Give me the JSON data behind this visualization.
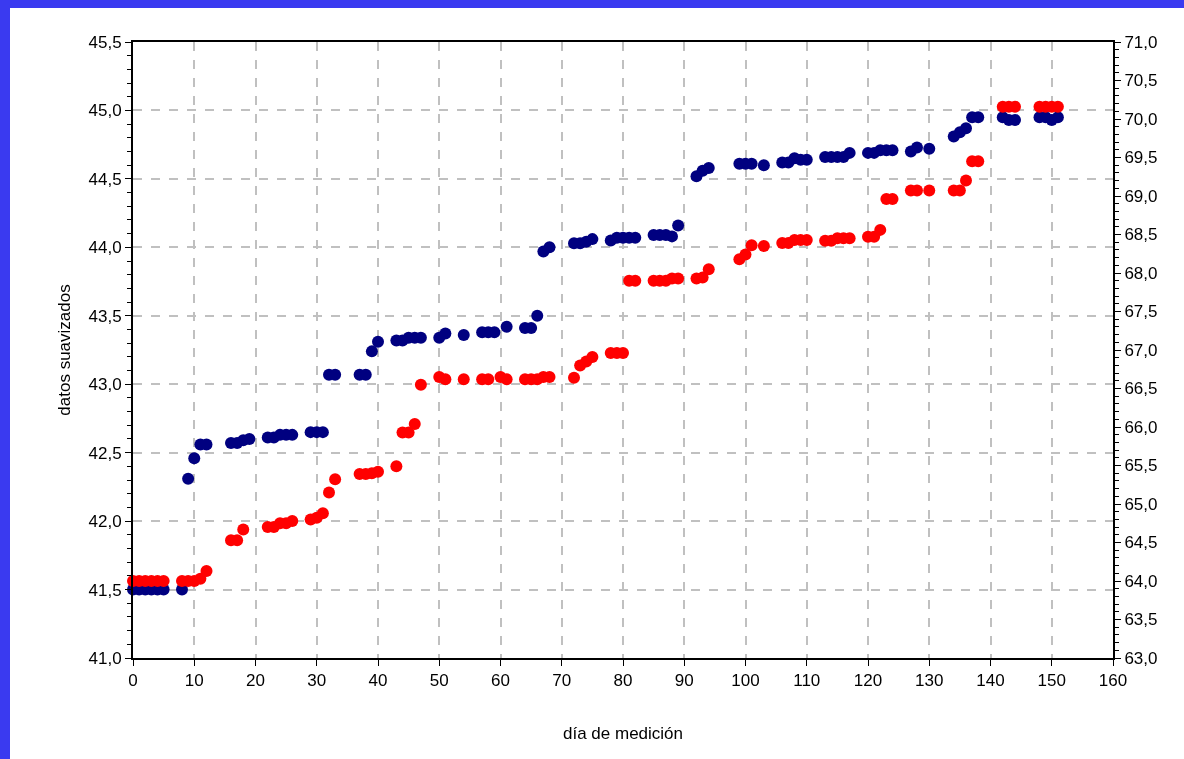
{
  "chart_data": {
    "type": "scatter",
    "xlabel": "día de medición",
    "ylabel": "datos suavizados",
    "marker": "circle",
    "grid": true,
    "xlim": [
      0,
      160
    ],
    "xticks": [
      0,
      10,
      20,
      30,
      40,
      50,
      60,
      70,
      80,
      90,
      100,
      110,
      120,
      130,
      140,
      150,
      160
    ],
    "ylim": [
      41,
      45.5
    ],
    "yticks": [
      {
        "value": 41,
        "label": "41,0"
      },
      {
        "value": 41.5,
        "label": "41,5"
      },
      {
        "value": 42,
        "label": "42,0"
      },
      {
        "value": 42.5,
        "label": "42,5"
      },
      {
        "value": 43,
        "label": "43,0"
      },
      {
        "value": 43.5,
        "label": "43,5"
      },
      {
        "value": 44,
        "label": "44,0"
      },
      {
        "value": 44.5,
        "label": "44,5"
      },
      {
        "value": 45,
        "label": "45,0"
      },
      {
        "value": 45.5,
        "label": "45,5"
      }
    ],
    "y2lim": [
      63,
      71
    ],
    "y2ticks": [
      {
        "value": 63,
        "label": "63,0"
      },
      {
        "value": 63.5,
        "label": "63,5"
      },
      {
        "value": 64,
        "label": "64,0"
      },
      {
        "value": 64.5,
        "label": "64,5"
      },
      {
        "value": 65,
        "label": "65,0"
      },
      {
        "value": 65.5,
        "label": "65,5"
      },
      {
        "value": 66,
        "label": "66,0"
      },
      {
        "value": 66.5,
        "label": "66,5"
      },
      {
        "value": 67,
        "label": "67,0"
      },
      {
        "value": 67.5,
        "label": "67,5"
      },
      {
        "value": 68,
        "label": "68,0"
      },
      {
        "value": 68.5,
        "label": "68,5"
      },
      {
        "value": 69,
        "label": "69,0"
      },
      {
        "value": 69.5,
        "label": "69,5"
      },
      {
        "value": 70,
        "label": "70,0"
      },
      {
        "value": 70.5,
        "label": "70,5"
      },
      {
        "value": 71,
        "label": "71,0"
      }
    ],
    "series": [
      {
        "color": "#000080",
        "x": [
          0,
          1,
          2,
          3,
          4,
          5,
          8,
          9,
          10,
          11,
          12,
          16,
          17,
          18,
          19,
          22,
          23,
          24,
          25,
          26,
          29,
          30,
          31,
          32,
          33,
          37,
          38,
          39,
          40,
          43,
          44,
          45,
          46,
          47,
          50,
          51,
          54,
          57,
          58,
          59,
          61,
          64,
          65,
          66,
          67,
          68,
          72,
          73,
          74,
          75,
          78,
          79,
          80,
          81,
          82,
          85,
          86,
          87,
          88,
          89,
          92,
          93,
          94,
          99,
          100,
          101,
          103,
          106,
          107,
          108,
          109,
          110,
          113,
          114,
          115,
          116,
          117,
          120,
          121,
          122,
          123,
          124,
          127,
          128,
          130,
          134,
          135,
          136,
          137,
          138,
          142,
          143,
          144,
          148,
          149,
          150,
          151
        ],
        "values": [
          41.5,
          41.5,
          41.5,
          41.5,
          41.5,
          41.5,
          41.5,
          42.31,
          42.46,
          42.56,
          42.56,
          42.57,
          42.57,
          42.59,
          42.6,
          42.61,
          42.61,
          42.63,
          42.63,
          42.63,
          42.65,
          42.65,
          42.65,
          43.07,
          43.07,
          43.07,
          43.07,
          43.24,
          43.31,
          43.32,
          43.32,
          43.34,
          43.34,
          43.34,
          43.34,
          43.37,
          43.36,
          43.38,
          43.38,
          43.38,
          43.42,
          43.41,
          43.41,
          43.5,
          43.97,
          44.0,
          44.03,
          44.03,
          44.04,
          44.06,
          44.05,
          44.07,
          44.07,
          44.07,
          44.07,
          44.09,
          44.09,
          44.09,
          44.08,
          44.16,
          44.52,
          44.56,
          44.58,
          44.61,
          44.61,
          44.61,
          44.6,
          44.62,
          44.62,
          44.65,
          44.64,
          44.64,
          44.66,
          44.66,
          44.66,
          44.66,
          44.69,
          44.69,
          44.69,
          44.71,
          44.71,
          44.71,
          44.7,
          44.73,
          44.72,
          44.81,
          44.84,
          44.87,
          44.95,
          44.95,
          44.95,
          44.93,
          44.93,
          44.95,
          44.95,
          44.93,
          44.95
        ]
      },
      {
        "color": "#ff0000",
        "axis": "y2",
        "x": [
          0,
          1,
          2,
          3,
          4,
          5,
          8,
          9,
          10,
          11,
          12,
          16,
          17,
          18,
          22,
          23,
          24,
          25,
          26,
          29,
          30,
          31,
          32,
          33,
          37,
          38,
          39,
          40,
          43,
          44,
          45,
          46,
          47,
          50,
          51,
          54,
          57,
          58,
          60,
          61,
          64,
          65,
          66,
          67,
          68,
          72,
          73,
          74,
          75,
          78,
          79,
          80,
          81,
          82,
          85,
          86,
          87,
          88,
          89,
          92,
          93,
          94,
          99,
          100,
          101,
          103,
          106,
          107,
          108,
          109,
          110,
          113,
          114,
          115,
          116,
          117,
          120,
          121,
          122,
          123,
          124,
          127,
          128,
          130,
          134,
          135,
          136,
          137,
          138,
          142,
          143,
          144,
          148,
          149,
          150,
          151
        ],
        "values": [
          64.0,
          64.0,
          64.0,
          64.0,
          64.0,
          64.0,
          64.0,
          64.0,
          64.0,
          64.03,
          64.13,
          64.53,
          64.53,
          64.67,
          64.7,
          64.7,
          64.75,
          64.75,
          64.78,
          64.8,
          64.82,
          64.88,
          65.15,
          65.32,
          65.39,
          65.39,
          65.4,
          65.42,
          65.49,
          65.93,
          65.93,
          66.04,
          66.55,
          66.65,
          66.62,
          66.62,
          66.62,
          66.62,
          66.65,
          66.62,
          66.62,
          66.62,
          66.62,
          66.65,
          66.65,
          66.64,
          66.8,
          66.85,
          66.91,
          66.96,
          66.96,
          66.96,
          67.9,
          67.9,
          67.9,
          67.9,
          67.9,
          67.93,
          67.93,
          67.93,
          67.94,
          68.05,
          68.18,
          68.24,
          68.36,
          68.35,
          68.39,
          68.39,
          68.43,
          68.43,
          68.43,
          68.42,
          68.42,
          68.45,
          68.45,
          68.45,
          68.47,
          68.47,
          68.56,
          68.96,
          68.96,
          69.07,
          69.07,
          69.07,
          69.07,
          69.07,
          69.2,
          69.45,
          69.45,
          70.16,
          70.16,
          70.16,
          70.16,
          70.16,
          70.16,
          70.16
        ]
      }
    ]
  }
}
